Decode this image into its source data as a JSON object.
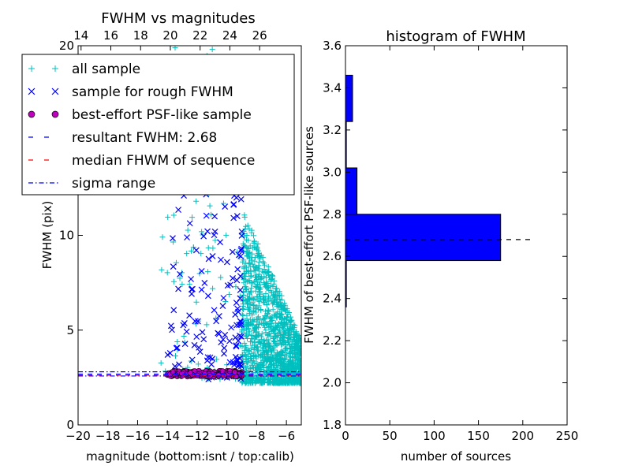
{
  "chart_data": [
    {
      "type": "scatter",
      "title": "FWHM vs magnitudes",
      "xlabel": "magnitude (bottom:isnt / top:calib)",
      "ylabel": "FWHM (pix)",
      "xlim": [
        -20,
        -5
      ],
      "ylim": [
        0,
        20
      ],
      "x_ticks": [
        "−20",
        "−18",
        "−16",
        "−14",
        "−12",
        "−10",
        "−8",
        "−6"
      ],
      "x_tick_values": [
        -20,
        -18,
        -16,
        -14,
        -12,
        -10,
        -8,
        -6
      ],
      "top_ticks": [
        "14",
        "16",
        "18",
        "20",
        "22",
        "24",
        "26"
      ],
      "top_tick_values": [
        14,
        16,
        18,
        20,
        22,
        24,
        26
      ],
      "y_ticks": [
        "0",
        "5",
        "10",
        "20"
      ],
      "y_tick_values": [
        0,
        5,
        10,
        20
      ],
      "legend": {
        "placement": "upper-left",
        "entries": [
          {
            "label": "all sample",
            "marker": "+",
            "color": "#00bfbf"
          },
          {
            "label": "sample for rough FWHM",
            "marker": "x",
            "color": "#0000ff"
          },
          {
            "label": "best-effort PSF-like sample",
            "marker": "o",
            "color": "#bf00bf"
          },
          {
            "label": "resultant FWHM: 2.68",
            "marker": "dashed",
            "color": "#0000ff"
          },
          {
            "label": "median FHWM of sequence",
            "marker": "dashed",
            "color": "#ff0000"
          },
          {
            "label": "sigma range",
            "marker": "dashdot",
            "color": "#0000ff"
          }
        ]
      },
      "lines": {
        "resultant_fwhm": 2.68,
        "median_fwhm": 2.62,
        "sigma_range": [
          2.58,
          2.8
        ]
      },
      "series_colors": {
        "all": "#00bfbf",
        "rough": "#0000ff",
        "best": "#bf00bf"
      },
      "series_regions": {
        "all": [
          {
            "x": [
              -9.0,
              -5.0
            ],
            "y_min": 2.2,
            "y_max_at_bright": 11.5,
            "y_max_at_faint": 4.5,
            "n": 1400
          },
          {
            "x": [
              -14.5,
              -9.0
            ],
            "y_min": 2.4,
            "y_max": 20,
            "n": 110
          }
        ],
        "rough": {
          "x": [
            -14.0,
            -9.0
          ],
          "y_min": 2.4,
          "y_max": 16,
          "n": 190
        },
        "best": {
          "x": [
            -14.0,
            -9.0
          ],
          "y_min": 2.55,
          "y_max": 2.85,
          "n": 170
        }
      }
    },
    {
      "type": "bar",
      "orientation": "horizontal",
      "title": "histogram of FWHM",
      "xlabel": "number of sources",
      "ylabel": "FWHM of best-effort PSF-like sources",
      "xlim": [
        0,
        250
      ],
      "ylim": [
        1.8,
        3.6
      ],
      "x_ticks": [
        "0",
        "50",
        "100",
        "150",
        "200",
        "250"
      ],
      "x_tick_values": [
        0,
        50,
        100,
        150,
        200,
        250
      ],
      "y_ticks": [
        "1.8",
        "2.0",
        "2.2",
        "2.4",
        "2.6",
        "2.8",
        "3.0",
        "3.2",
        "3.4",
        "3.6"
      ],
      "y_tick_values": [
        1.8,
        2.0,
        2.2,
        2.4,
        2.6,
        2.8,
        3.0,
        3.2,
        3.4,
        3.6
      ],
      "bins": [
        {
          "from": 2.36,
          "to": 2.58,
          "count": 1
        },
        {
          "from": 2.58,
          "to": 2.8,
          "count": 175
        },
        {
          "from": 2.8,
          "to": 3.02,
          "count": 13
        },
        {
          "from": 3.02,
          "to": 3.24,
          "count": 1
        },
        {
          "from": 3.24,
          "to": 3.46,
          "count": 8
        }
      ],
      "bar_color": "#0000ff",
      "reference_line": {
        "value": 2.68,
        "x_extent": [
          0,
          212
        ]
      }
    }
  ]
}
